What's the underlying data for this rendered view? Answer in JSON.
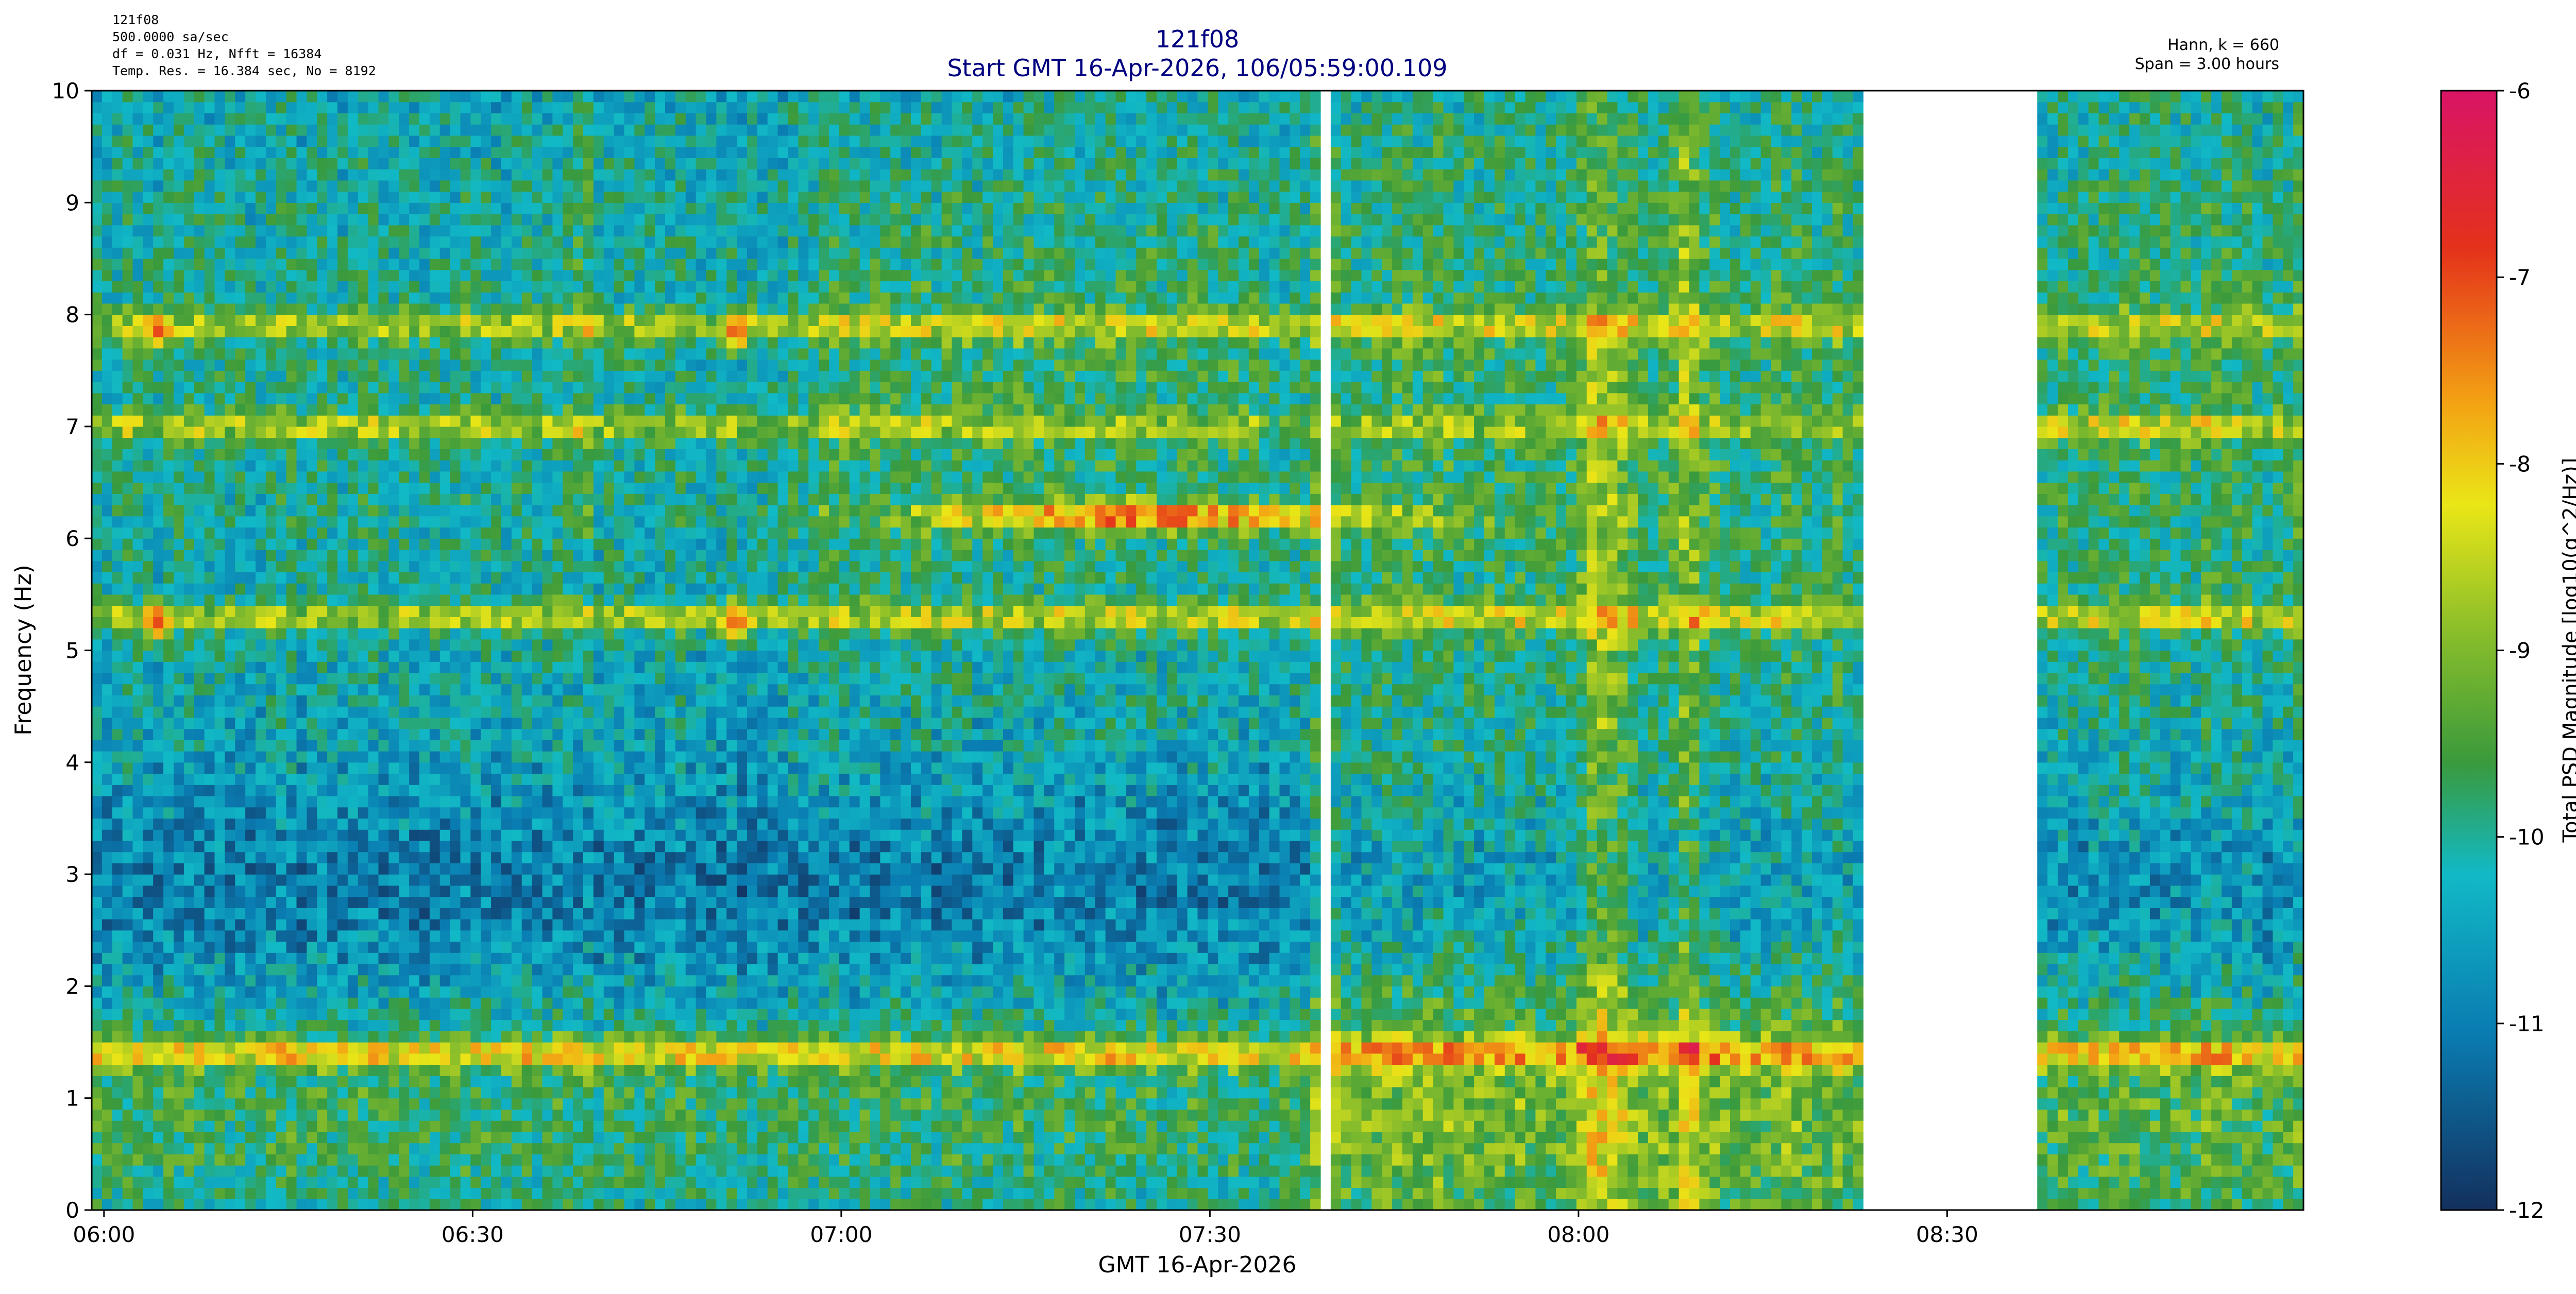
{
  "header": {
    "meta_left": [
      "121f08",
      "500.0000 sa/sec",
      "df = 0.031 Hz,  Nfft = 16384",
      "Temp. Res. = 16.384 sec, No = 8192"
    ],
    "title": "121f08",
    "subtitle": "Start GMT 16-Apr-2026, 106/05:59:00.109",
    "meta_right": [
      "Hann, k = 660",
      "Span = 3.00 hours"
    ]
  },
  "chart_data": {
    "type": "heatmap",
    "xlabel": "GMT 16-Apr-2026",
    "ylabel": "Frequency (Hz)",
    "x_unit": "minutes after 06:00 GMT",
    "xlim": [
      -1,
      179
    ],
    "ylim": [
      0,
      10
    ],
    "x_ticks": [
      {
        "value": 0,
        "label": "06:00"
      },
      {
        "value": 30,
        "label": "06:30"
      },
      {
        "value": 60,
        "label": "07:00"
      },
      {
        "value": 90,
        "label": "07:30"
      },
      {
        "value": 120,
        "label": "08:00"
      },
      {
        "value": 150,
        "label": "08:30"
      }
    ],
    "y_ticks": [
      "0",
      "1",
      "2",
      "3",
      "4",
      "5",
      "6",
      "7",
      "8",
      "9",
      "10"
    ],
    "colorbar": {
      "label": "Total PSD Magnitude [log10(g^2/Hz)]",
      "range": [
        -12,
        -6
      ],
      "ticks": [
        "-6",
        "-7",
        "-8",
        "-9",
        "-10",
        "-11",
        "-12"
      ],
      "colors": [
        "#13305e",
        "#0a7db2",
        "#11b9c6",
        "#3a9a3c",
        "#8cbf2a",
        "#eae617",
        "#f3a314",
        "#e4311b",
        "#d91466"
      ]
    },
    "data_gaps": [
      {
        "start": 97.8,
        "end": 98.5
      },
      {
        "start": 99.2,
        "end": 100.2
      },
      {
        "start": 142.8,
        "end": 157.6
      }
    ],
    "spectral_bands": [
      {
        "freq": 1.4,
        "level": -8.3
      },
      {
        "freq": 5.3,
        "level": -8.6
      },
      {
        "freq": 6.2,
        "level": -7.6
      },
      {
        "freq": 7.0,
        "level": -8.7
      },
      {
        "freq": 7.9,
        "level": -8.8
      }
    ],
    "transients": [
      {
        "time": 4.3,
        "freq": 7.85,
        "level": -7.0
      },
      {
        "time": 4.3,
        "freq": 5.25,
        "level": -7.0
      },
      {
        "time": 51.5,
        "freq": 7.85,
        "level": -7.0
      },
      {
        "time": 51.5,
        "freq": 5.25,
        "level": -7.0
      },
      {
        "time": 105.0,
        "freq": 1.4,
        "level": -7.2
      },
      {
        "time": 125.0,
        "freq": 1.4,
        "level": -7.4
      }
    ]
  }
}
